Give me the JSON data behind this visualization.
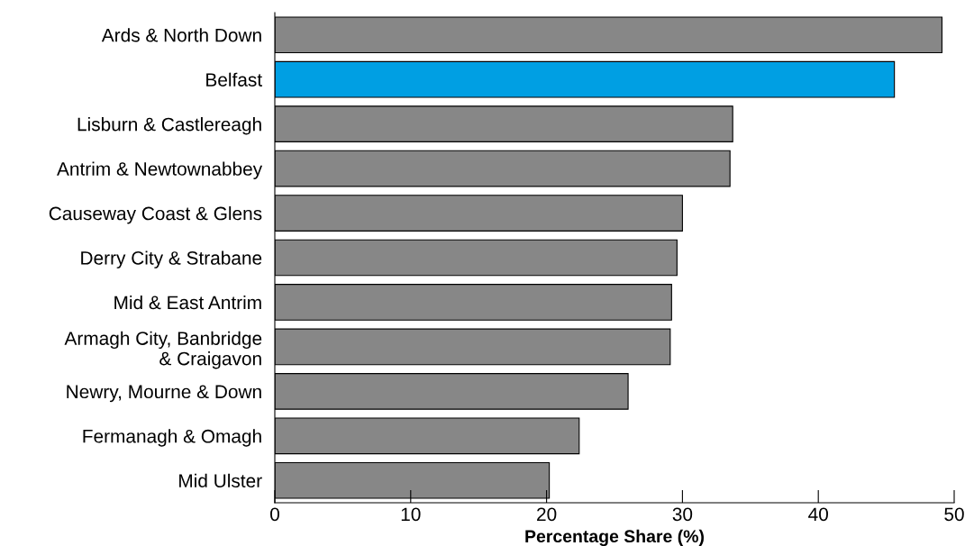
{
  "chart_data": {
    "type": "bar",
    "orientation": "horizontal",
    "xlabel": "Percentage Share (%)",
    "categories": [
      "Ards & North Down",
      "Belfast",
      "Lisburn & Castlereagh",
      "Antrim & Newtownabbey",
      "Causeway Coast & Glens",
      "Derry City & Strabane",
      "Mid & East Antrim",
      "Armagh City, Banbridge\n& Craigavon",
      "Newry, Mourne & Down",
      "Fermanagh & Omagh",
      "Mid Ulster"
    ],
    "values": [
      49.1,
      45.6,
      33.7,
      33.5,
      30.0,
      29.6,
      29.2,
      29.1,
      26.0,
      22.4,
      20.2
    ],
    "colors": [
      "#878787",
      "#009fe3",
      "#878787",
      "#878787",
      "#878787",
      "#878787",
      "#878787",
      "#878787",
      "#878787",
      "#878787",
      "#878787"
    ],
    "xlim": [
      0,
      50
    ],
    "xticks": [
      0,
      10,
      20,
      30,
      40,
      50
    ],
    "grid": false,
    "legend": false
  }
}
